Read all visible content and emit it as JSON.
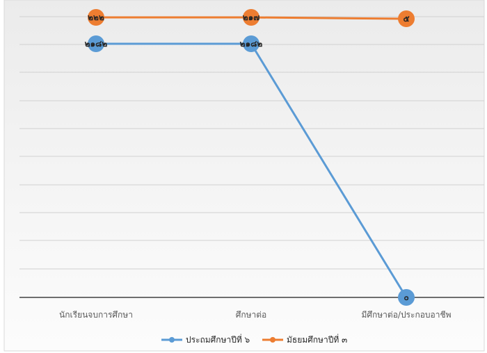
{
  "chart_data": {
    "type": "line",
    "title": "",
    "xlabel": "",
    "ylabel": "",
    "categories": [
      "นักเรียนจบการศึกษา",
      "ศึกษาต่อ",
      "มีศึกษาต่อ/ประกอบอาชีพ"
    ],
    "series": [
      {
        "name": "ประถมศึกษาปีที่ ๖",
        "values": [
          2182,
          2182,
          0
        ],
        "labels": [
          "๒๑๘๒",
          "๒๑๘๒",
          "๐"
        ],
        "color": "#5b9bd5"
      },
      {
        "name": "มัธยมศึกษาปีที่ ๓",
        "values": [
          222,
          217,
          5
        ],
        "labels": [
          "๒๒๒",
          "๒๑๗",
          "๕"
        ],
        "color": "#ed7d31"
      }
    ],
    "grid": true,
    "legend_position": "bottom"
  }
}
